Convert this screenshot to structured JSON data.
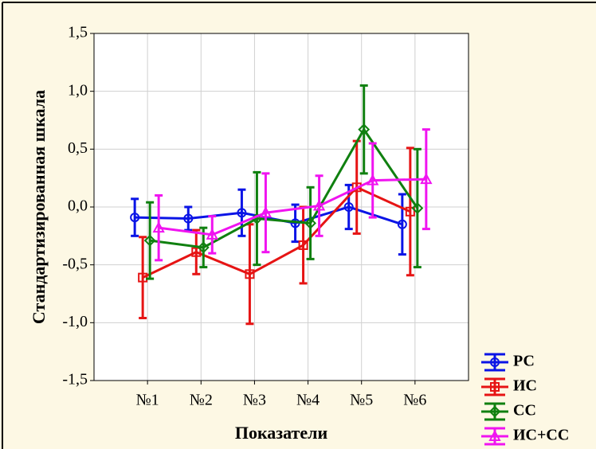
{
  "chart_data": {
    "type": "errorbar-line",
    "x_label": "Показатели",
    "y_label": "Стандартизированная шкала",
    "categories": [
      "№1",
      "№2",
      "№3",
      "№4",
      "№5",
      "№6"
    ],
    "series": [
      {
        "name": "РС",
        "color": "#0a14e6",
        "marker": "circle",
        "values": [
          -0.09,
          -0.1,
          -0.05,
          -0.14,
          0.0,
          -0.15
        ],
        "errors": [
          0.16,
          0.1,
          0.2,
          0.16,
          0.19,
          0.26
        ]
      },
      {
        "name": "ИС",
        "color": "#e61414",
        "marker": "square",
        "values": [
          -0.61,
          -0.39,
          -0.58,
          -0.33,
          0.17,
          -0.04
        ],
        "errors": [
          0.35,
          0.19,
          0.43,
          0.33,
          0.4,
          0.55
        ]
      },
      {
        "name": "СС",
        "color": "#108010",
        "marker": "diamond",
        "values": [
          -0.29,
          -0.35,
          -0.1,
          -0.14,
          0.67,
          -0.01
        ],
        "errors": [
          0.33,
          0.17,
          0.4,
          0.31,
          0.38,
          0.51
        ]
      },
      {
        "name": "ИС+СС",
        "color": "#f014f0",
        "marker": "triangle",
        "values": [
          -0.18,
          -0.24,
          -0.05,
          0.01,
          0.23,
          0.24
        ],
        "errors": [
          0.28,
          0.16,
          0.34,
          0.26,
          0.32,
          0.43
        ]
      }
    ],
    "ylim": [
      -1.5,
      1.5
    ],
    "yticks": [
      {
        "value": -1.5,
        "label": "-1,5"
      },
      {
        "value": -1.0,
        "label": "-1,0"
      },
      {
        "value": -0.5,
        "label": "-0,5"
      },
      {
        "value": 0,
        "label": "0,0"
      },
      {
        "value": 0.5,
        "label": "0,5"
      },
      {
        "value": 1.0,
        "label": "1,0"
      },
      {
        "value": 1.5,
        "label": "1,5"
      }
    ],
    "grid": true,
    "legend": "bottom-right"
  }
}
